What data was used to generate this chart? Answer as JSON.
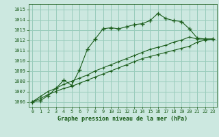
{
  "title": "Graphe pression niveau de la mer (hPa)",
  "background_color": "#cce8e0",
  "grid_color": "#99ccbb",
  "line_color": "#1a5c1a",
  "ylim": [
    1005.5,
    1015.5
  ],
  "yticks": [
    1006,
    1007,
    1008,
    1009,
    1010,
    1011,
    1012,
    1013,
    1014,
    1015
  ],
  "xlim": [
    -0.5,
    23.5
  ],
  "xticks": [
    0,
    1,
    2,
    3,
    4,
    5,
    6,
    7,
    8,
    9,
    10,
    11,
    12,
    13,
    14,
    15,
    16,
    17,
    18,
    19,
    20,
    21,
    22,
    23
  ],
  "series": [
    [
      1006.0,
      1006.1,
      1006.6,
      1007.3,
      1008.1,
      1007.6,
      1009.1,
      1011.1,
      1012.1,
      1013.1,
      1013.2,
      1013.1,
      1013.3,
      1013.5,
      1013.6,
      1013.9,
      1014.6,
      1014.1,
      1013.9,
      1013.8,
      1013.1,
      1012.2,
      1012.1,
      1012.1
    ],
    [
      1006.0,
      1006.5,
      1007.0,
      1007.3,
      1007.7,
      1008.0,
      1008.3,
      1008.6,
      1009.0,
      1009.3,
      1009.6,
      1009.9,
      1010.2,
      1010.5,
      1010.8,
      1011.1,
      1011.3,
      1011.5,
      1011.8,
      1012.0,
      1012.3,
      1012.1,
      1012.1,
      1012.1
    ],
    [
      1006.0,
      1006.3,
      1006.7,
      1007.0,
      1007.3,
      1007.5,
      1007.8,
      1008.1,
      1008.4,
      1008.7,
      1009.0,
      1009.3,
      1009.6,
      1009.9,
      1010.2,
      1010.4,
      1010.6,
      1010.8,
      1011.0,
      1011.2,
      1011.4,
      1011.8,
      1012.0,
      1012.1
    ]
  ]
}
